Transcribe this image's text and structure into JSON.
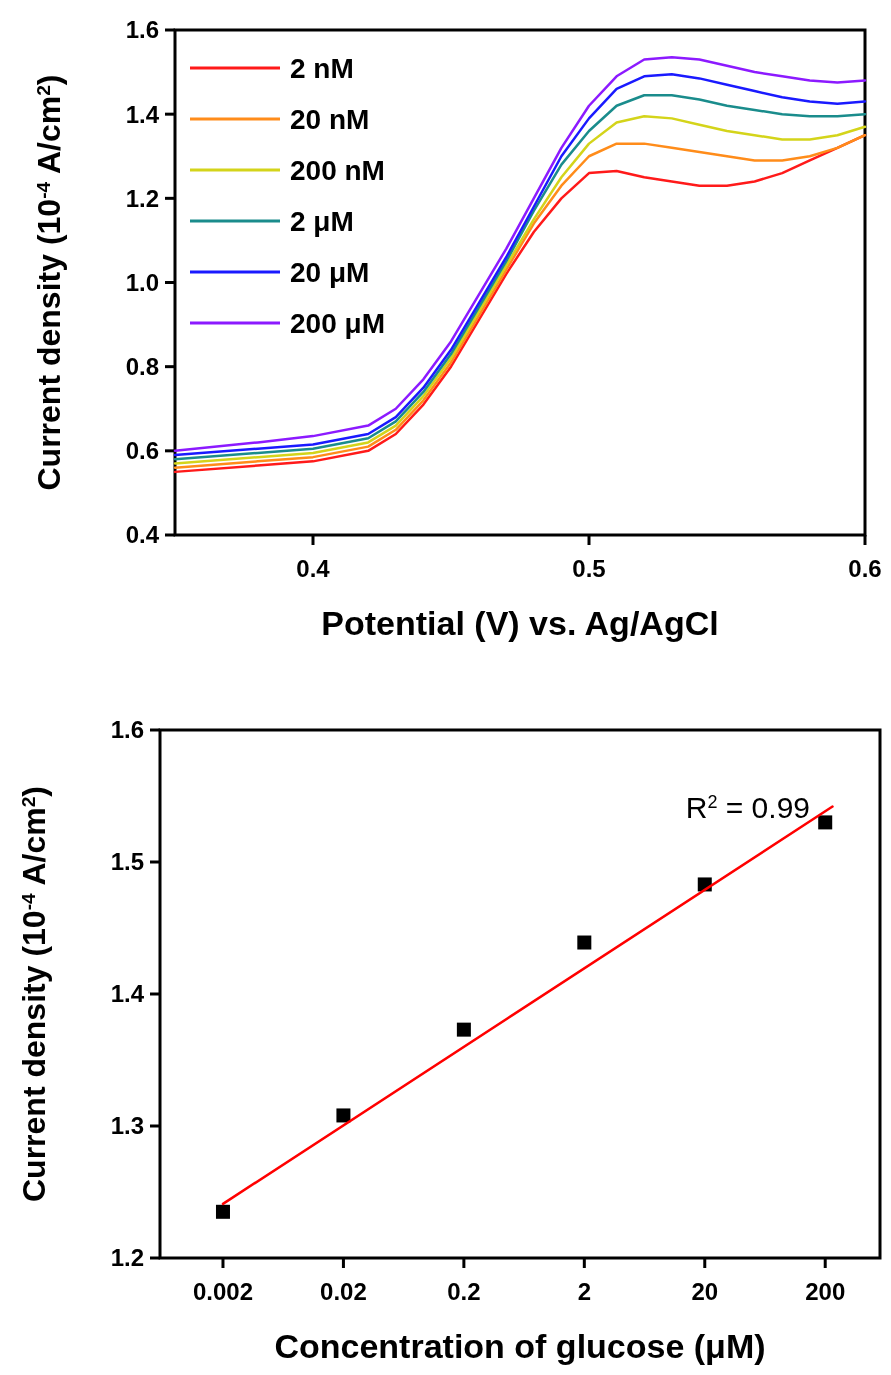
{
  "chart_data": [
    {
      "type": "line",
      "xlabel": "Potential (V) vs. Ag/AgCl",
      "ylabel": "Current density (10$^{-4}$ A/cm$^{2}$)",
      "x": [
        0.35,
        0.38,
        0.4,
        0.42,
        0.43,
        0.44,
        0.45,
        0.46,
        0.47,
        0.48,
        0.49,
        0.5,
        0.51,
        0.52,
        0.53,
        0.54,
        0.55,
        0.56,
        0.57,
        0.58,
        0.59,
        0.6
      ],
      "series": [
        {
          "name": "2 nM",
          "color": "#ff1a1a",
          "values": [
            0.55,
            0.565,
            0.575,
            0.6,
            0.64,
            0.71,
            0.8,
            0.91,
            1.02,
            1.12,
            1.2,
            1.26,
            1.265,
            1.25,
            1.24,
            1.23,
            1.23,
            1.24,
            1.26,
            1.29,
            1.32,
            1.35
          ]
        },
        {
          "name": "20 nM",
          "color": "#ff8c1a",
          "values": [
            0.56,
            0.575,
            0.585,
            0.61,
            0.65,
            0.72,
            0.81,
            0.92,
            1.03,
            1.14,
            1.23,
            1.3,
            1.33,
            1.33,
            1.32,
            1.31,
            1.3,
            1.29,
            1.29,
            1.3,
            1.32,
            1.35
          ]
        },
        {
          "name": "200 nM",
          "color": "#d4d41a",
          "values": [
            0.57,
            0.585,
            0.595,
            0.62,
            0.66,
            0.73,
            0.82,
            0.93,
            1.04,
            1.15,
            1.25,
            1.33,
            1.38,
            1.395,
            1.39,
            1.375,
            1.36,
            1.35,
            1.34,
            1.34,
            1.35,
            1.37
          ]
        },
        {
          "name": "2 μM",
          "color": "#1a8c8c",
          "values": [
            0.58,
            0.595,
            0.605,
            0.63,
            0.67,
            0.74,
            0.83,
            0.94,
            1.05,
            1.17,
            1.28,
            1.36,
            1.42,
            1.445,
            1.445,
            1.435,
            1.42,
            1.41,
            1.4,
            1.395,
            1.395,
            1.4
          ]
        },
        {
          "name": "20 μM",
          "color": "#1a1aff",
          "values": [
            0.59,
            0.605,
            0.615,
            0.64,
            0.68,
            0.75,
            0.84,
            0.95,
            1.06,
            1.18,
            1.3,
            1.39,
            1.46,
            1.49,
            1.495,
            1.485,
            1.47,
            1.455,
            1.44,
            1.43,
            1.425,
            1.43
          ]
        },
        {
          "name": "200 μM",
          "color": "#8c1aff",
          "values": [
            0.6,
            0.62,
            0.635,
            0.66,
            0.7,
            0.77,
            0.86,
            0.97,
            1.08,
            1.2,
            1.32,
            1.42,
            1.49,
            1.53,
            1.535,
            1.53,
            1.515,
            1.5,
            1.49,
            1.48,
            1.475,
            1.48
          ]
        }
      ],
      "xlim": [
        0.35,
        0.6
      ],
      "xticks": [
        0.4,
        0.5,
        0.6
      ],
      "ylim": [
        0.4,
        1.6
      ],
      "yticks": [
        0.4,
        0.6,
        0.8,
        {
          "value": 1,
          "label": "1.0"
        },
        1.2,
        1.4,
        1.6
      ],
      "legend": "top left"
    },
    {
      "type": "scatter",
      "xlabel": "Concentration of glucose (μM)",
      "ylabel": "Current density (10$^{-4}$ A/cm$^{2}$)",
      "log": "x",
      "series": [
        {
          "marker": "square",
          "color": "#000000",
          "x": [
            0.002,
            0.02,
            0.2,
            2,
            20,
            200
          ],
          "values": [
            1.235,
            1.308,
            1.373,
            1.439,
            1.483,
            1.53
          ]
        },
        {
          "type": "line",
          "color": "#ff0000",
          "x": [
            0.002,
            230
          ],
          "values": [
            1.241,
            1.542
          ]
        }
      ],
      "xlim": [
        0.0006,
        570
      ],
      "xticks": [
        0.002,
        0.02,
        0.2,
        2,
        20,
        200
      ],
      "ylim": [
        1.2,
        1.6
      ],
      "yticks": [
        1.2,
        1.3,
        1.4,
        1.5,
        1.6
      ],
      "annotations": [
        "R$^{2}$ = 0.99"
      ]
    }
  ]
}
